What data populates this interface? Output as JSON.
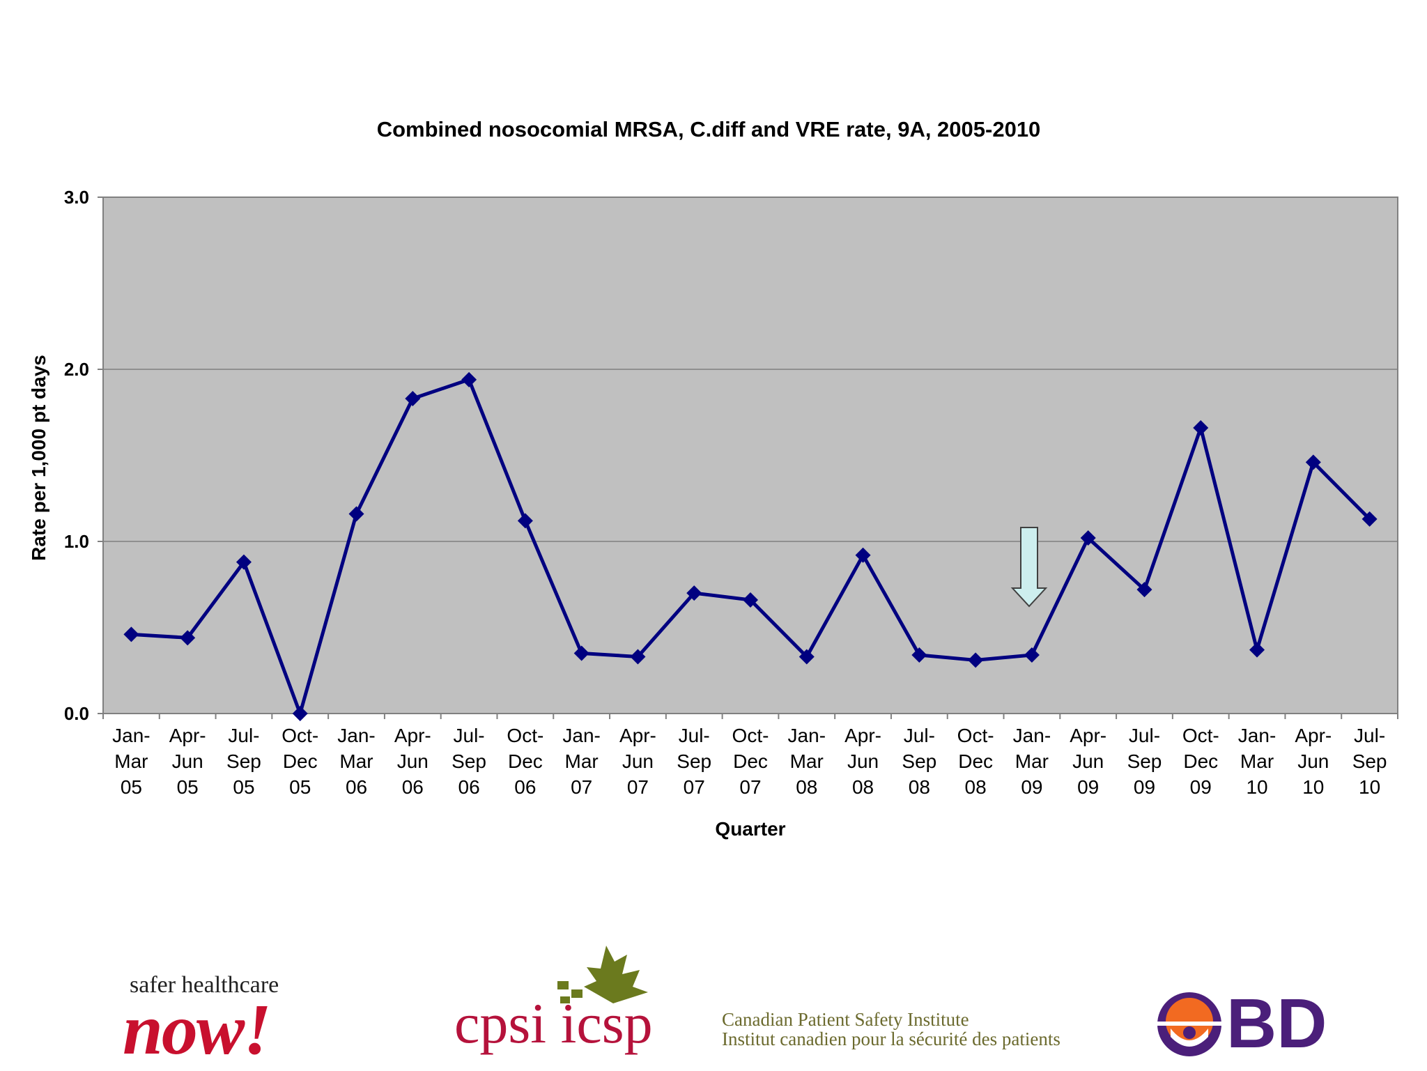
{
  "chart_data": {
    "type": "line",
    "title": "Combined nosocomial MRSA, C.diff and VRE rate, 9A, 2005-2010",
    "xlabel": "Quarter",
    "ylabel": "Rate per 1,000 pt days",
    "ylim": [
      0,
      3
    ],
    "yticks": [
      "0.0",
      "1.0",
      "2.0",
      "3.0"
    ],
    "grid": true,
    "categories": [
      [
        "Jan-",
        "Mar",
        "05"
      ],
      [
        "Apr-",
        "Jun",
        "05"
      ],
      [
        "Jul-",
        "Sep",
        "05"
      ],
      [
        "Oct-",
        "Dec",
        "05"
      ],
      [
        "Jan-",
        "Mar",
        "06"
      ],
      [
        "Apr-",
        "Jun",
        "06"
      ],
      [
        "Jul-",
        "Sep",
        "06"
      ],
      [
        "Oct-",
        "Dec",
        "06"
      ],
      [
        "Jan-",
        "Mar",
        "07"
      ],
      [
        "Apr-",
        "Jun",
        "07"
      ],
      [
        "Jul-",
        "Sep",
        "07"
      ],
      [
        "Oct-",
        "Dec",
        "07"
      ],
      [
        "Jan-",
        "Mar",
        "08"
      ],
      [
        "Apr-",
        "Jun",
        "08"
      ],
      [
        "Jul-",
        "Sep",
        "08"
      ],
      [
        "Oct-",
        "Dec",
        "08"
      ],
      [
        "Jan-",
        "Mar",
        "09"
      ],
      [
        "Apr-",
        "Jun",
        "09"
      ],
      [
        "Jul-",
        "Sep",
        "09"
      ],
      [
        "Oct-",
        "Dec",
        "09"
      ],
      [
        "Jan-",
        "Mar",
        "10"
      ],
      [
        "Apr-",
        "Jun",
        "10"
      ],
      [
        "Jul-",
        "Sep",
        "10"
      ]
    ],
    "values": [
      0.46,
      0.44,
      0.88,
      0.0,
      1.16,
      1.83,
      1.94,
      1.12,
      0.35,
      0.33,
      0.7,
      0.66,
      0.33,
      0.92,
      0.34,
      0.31,
      0.34,
      1.02,
      0.72,
      1.66,
      0.37,
      1.46,
      1.13
    ],
    "marker_category_index": 16,
    "colors": {
      "line": "#000080",
      "plot_background": "#c0c0c0",
      "gridline": "#808080",
      "arrow_fill": "#cdeeee"
    }
  },
  "logos": {
    "shn_top": "safer healthcare",
    "shn_now": "now!",
    "cpsi": "cpsi icsp",
    "cpsi_en": "Canadian Patient Safety Institute",
    "cpsi_fr": "Institut canadien pour la sécurité des patients",
    "bd": "BD"
  }
}
